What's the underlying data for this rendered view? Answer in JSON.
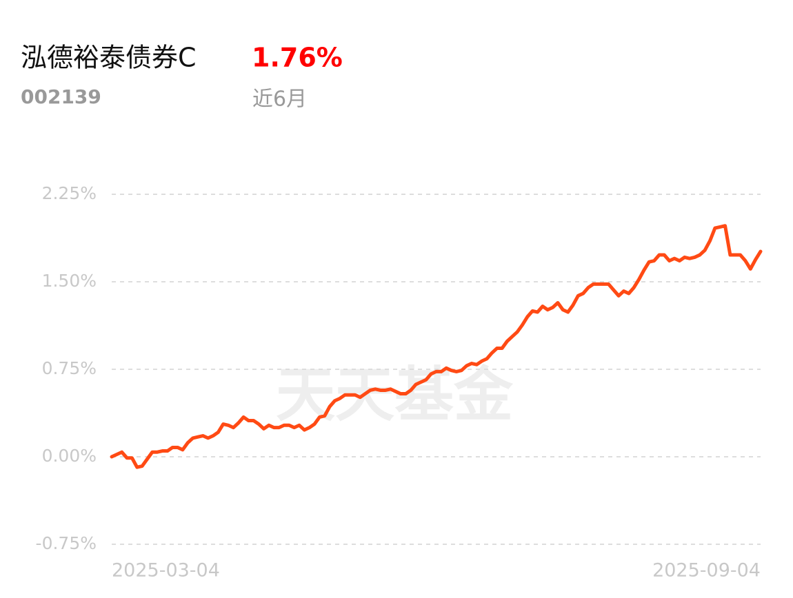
{
  "header": {
    "name": "泓德裕泰债券C",
    "return_label": "1.76%",
    "code": "002139",
    "period": "近6月"
  },
  "chart_data": {
    "type": "line",
    "watermark": "天天基金",
    "categories": [
      "2025-03-04",
      null,
      null,
      null,
      null,
      null,
      null,
      null,
      null,
      null,
      null,
      null,
      null,
      null,
      null,
      null,
      null,
      null,
      null,
      null,
      null,
      null,
      null,
      null,
      null,
      null,
      null,
      null,
      null,
      null,
      null,
      null,
      null,
      null,
      null,
      null,
      null,
      null,
      null,
      null,
      null,
      null,
      null,
      null,
      null,
      null,
      null,
      null,
      null,
      null,
      null,
      null,
      null,
      null,
      null,
      null,
      null,
      null,
      null,
      null,
      null,
      null,
      null,
      null,
      null,
      null,
      null,
      null,
      null,
      null,
      null,
      null,
      null,
      null,
      null,
      null,
      null,
      null,
      null,
      null,
      null,
      null,
      null,
      null,
      null,
      null,
      null,
      null,
      null,
      null,
      null,
      null,
      null,
      null,
      null,
      null,
      null,
      null,
      null,
      null,
      null,
      null,
      null,
      null,
      null,
      null,
      null,
      null,
      null,
      null,
      null,
      null,
      null,
      null,
      null,
      null,
      null,
      null,
      null,
      null,
      null,
      null,
      null,
      null,
      null,
      null,
      null,
      null,
      "2025-09-04"
    ],
    "series": [
      {
        "color": "#ff4a14",
        "values": [
          0.0,
          0.02,
          0.04,
          -0.01,
          -0.01,
          -0.09,
          -0.08,
          -0.02,
          0.04,
          0.04,
          0.05,
          0.05,
          0.08,
          0.08,
          0.06,
          0.12,
          0.16,
          0.17,
          0.18,
          0.16,
          0.18,
          0.21,
          0.28,
          0.27,
          0.25,
          0.29,
          0.34,
          0.31,
          0.31,
          0.28,
          0.24,
          0.27,
          0.25,
          0.25,
          0.27,
          0.27,
          0.25,
          0.27,
          0.23,
          0.25,
          0.28,
          0.34,
          0.35,
          0.43,
          0.48,
          0.5,
          0.53,
          0.53,
          0.53,
          0.51,
          0.54,
          0.57,
          0.58,
          0.57,
          0.57,
          0.58,
          0.56,
          0.54,
          0.54,
          0.57,
          0.62,
          0.64,
          0.66,
          0.71,
          0.73,
          0.73,
          0.76,
          0.74,
          0.73,
          0.74,
          0.78,
          0.8,
          0.79,
          0.82,
          0.84,
          0.89,
          0.93,
          0.93,
          0.99,
          1.03,
          1.07,
          1.13,
          1.2,
          1.25,
          1.24,
          1.29,
          1.26,
          1.28,
          1.32,
          1.26,
          1.24,
          1.3,
          1.38,
          1.4,
          1.45,
          1.48,
          1.48,
          1.48,
          1.48,
          1.43,
          1.38,
          1.42,
          1.4,
          1.45,
          1.52,
          1.6,
          1.67,
          1.68,
          1.73,
          1.73,
          1.68,
          1.7,
          1.68,
          1.71,
          1.7,
          1.71,
          1.73,
          1.77,
          1.85,
          1.96,
          1.97,
          1.98,
          1.73,
          1.73,
          1.73,
          1.68,
          1.61,
          1.69,
          1.76
        ]
      }
    ],
    "ylim": [
      -0.75,
      2.25
    ],
    "yticks": [
      {
        "value": -0.75,
        "label": "-0.75%"
      },
      {
        "value": 0,
        "label": "0.00%"
      },
      {
        "value": 0.75,
        "label": "0.75%"
      },
      {
        "value": 1.5,
        "label": "1.50%"
      },
      {
        "value": 2.25,
        "label": "2.25%"
      }
    ],
    "grid": true
  }
}
